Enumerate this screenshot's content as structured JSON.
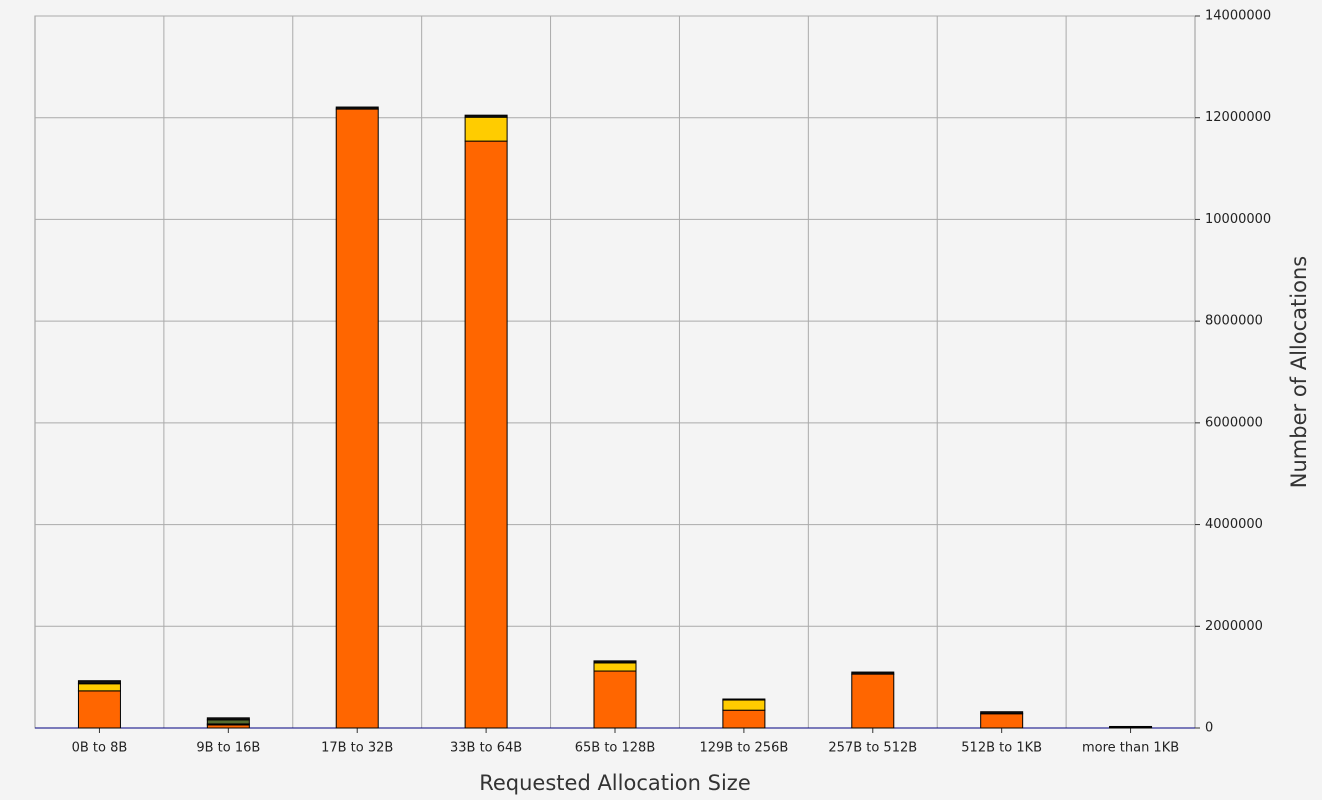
{
  "chart_data": {
    "type": "stacked_bar",
    "x_label": "Requested Allocation Size",
    "y_label": "Number of Allocations",
    "categories": [
      "0B to 8B",
      "9B to 16B",
      "17B to 32B",
      "33B to 64B",
      "65B to 128B",
      "129B to 256B",
      "257B to 512B",
      "512B to 1KB",
      "more than 1KB"
    ],
    "series": [
      {
        "color": "#ff6600",
        "values": [
          730000,
          60000,
          12170000,
          11540000,
          1120000,
          350000,
          1060000,
          280000,
          10000
        ]
      },
      {
        "color": "#ffcc00",
        "values": [
          140000,
          20000,
          0,
          470000,
          160000,
          200000,
          0,
          0,
          0
        ]
      },
      {
        "color": "#556b2f",
        "values": [
          0,
          80000,
          0,
          0,
          0,
          0,
          0,
          0,
          0
        ]
      },
      {
        "color": "#111111",
        "values": [
          60000,
          40000,
          40000,
          40000,
          40000,
          20000,
          40000,
          40000,
          20000
        ]
      }
    ],
    "ylim": [
      0,
      14000000
    ],
    "yticks": [
      0,
      2000000,
      4000000,
      6000000,
      8000000,
      10000000,
      12000000,
      14000000
    ],
    "grid": true,
    "y_axis_side": "right"
  }
}
